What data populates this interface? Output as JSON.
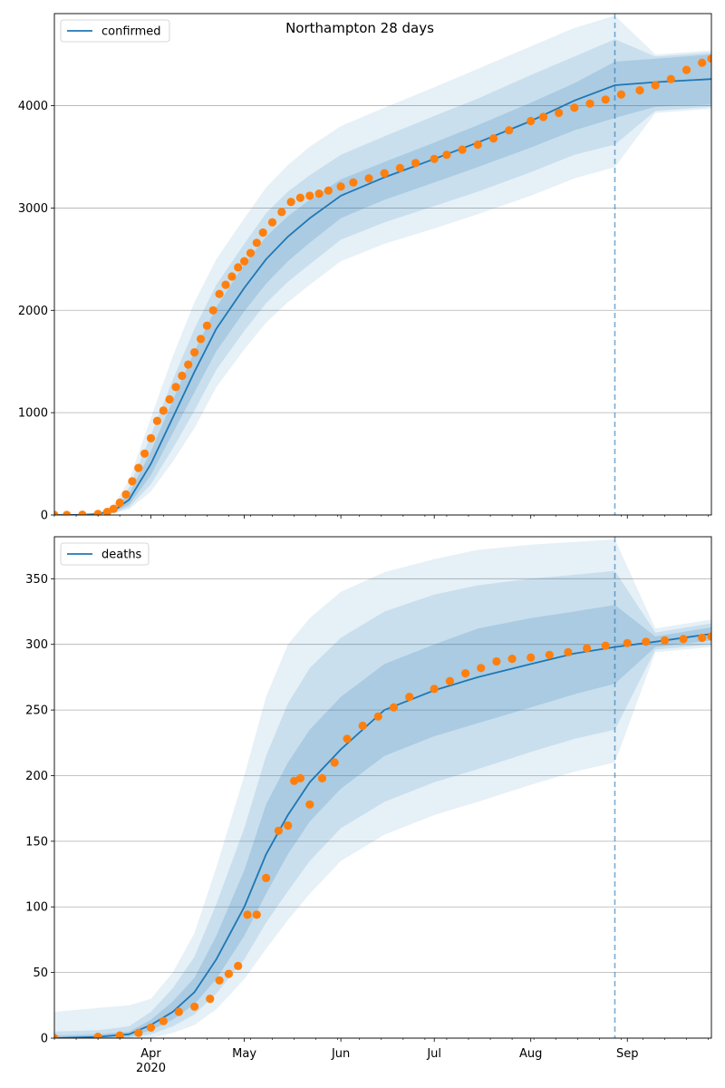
{
  "chart_data": [
    {
      "type": "line",
      "title": "Northampton 28 days",
      "legend": {
        "entries": [
          "confirmed"
        ],
        "placement": "top-left"
      },
      "grid": "horizontal",
      "ylim": [
        0,
        4900
      ],
      "xlim": [
        "2020-03-01",
        "2020-09-28"
      ],
      "yticks": [
        0,
        1000,
        2000,
        3000,
        4000
      ],
      "projection_start": "2020-08-28",
      "model": {
        "x": [
          "2020-03-01",
          "2020-03-10",
          "2020-03-15",
          "2020-03-20",
          "2020-03-25",
          "2020-04-01",
          "2020-04-08",
          "2020-04-15",
          "2020-04-22",
          "2020-05-01",
          "2020-05-08",
          "2020-05-15",
          "2020-05-22",
          "2020-06-01",
          "2020-06-15",
          "2020-07-01",
          "2020-07-15",
          "2020-08-01",
          "2020-08-15",
          "2020-08-28",
          "2020-09-10",
          "2020-09-28"
        ],
        "median": [
          0,
          2,
          10,
          40,
          150,
          500,
          950,
          1400,
          1820,
          2220,
          2500,
          2720,
          2900,
          3120,
          3300,
          3480,
          3640,
          3850,
          4050,
          4200,
          4230,
          4260
        ],
        "band_inner": [
          [
            0,
            0
          ],
          [
            1,
            3
          ],
          [
            7,
            13
          ],
          [
            28,
            55
          ],
          [
            100,
            210
          ],
          [
            390,
            620
          ],
          [
            800,
            1120
          ],
          [
            1200,
            1600
          ],
          [
            1600,
            2030
          ],
          [
            1990,
            2450
          ],
          [
            2260,
            2720
          ],
          [
            2480,
            2920
          ],
          [
            2660,
            3080
          ],
          [
            2900,
            3280
          ],
          [
            3080,
            3450
          ],
          [
            3250,
            3640
          ],
          [
            3400,
            3810
          ],
          [
            3590,
            4030
          ],
          [
            3760,
            4220
          ],
          [
            3880,
            4430
          ],
          [
            3990,
            4460
          ],
          [
            4010,
            4500
          ]
        ],
        "band_middle": [
          [
            0,
            0
          ],
          [
            1,
            4
          ],
          [
            5,
            17
          ],
          [
            20,
            75
          ],
          [
            75,
            270
          ],
          [
            300,
            780
          ],
          [
            650,
            1320
          ],
          [
            1020,
            1820
          ],
          [
            1420,
            2250
          ],
          [
            1800,
            2650
          ],
          [
            2070,
            2950
          ],
          [
            2280,
            3160
          ],
          [
            2450,
            3320
          ],
          [
            2690,
            3520
          ],
          [
            2860,
            3700
          ],
          [
            3020,
            3900
          ],
          [
            3160,
            4070
          ],
          [
            3350,
            4300
          ],
          [
            3520,
            4480
          ],
          [
            3620,
            4650
          ],
          [
            3950,
            4480
          ],
          [
            3990,
            4520
          ]
        ],
        "band_outer": [
          [
            0,
            0
          ],
          [
            0,
            5
          ],
          [
            3,
            22
          ],
          [
            14,
            95
          ],
          [
            55,
            340
          ],
          [
            230,
            950
          ],
          [
            520,
            1550
          ],
          [
            850,
            2080
          ],
          [
            1250,
            2500
          ],
          [
            1620,
            2900
          ],
          [
            1880,
            3200
          ],
          [
            2080,
            3420
          ],
          [
            2250,
            3600
          ],
          [
            2480,
            3800
          ],
          [
            2650,
            3980
          ],
          [
            2800,
            4180
          ],
          [
            2940,
            4360
          ],
          [
            3120,
            4580
          ],
          [
            3290,
            4760
          ],
          [
            3400,
            4880
          ],
          [
            3930,
            4500
          ],
          [
            3970,
            4540
          ]
        ]
      },
      "observed": {
        "x": [
          "2020-03-01",
          "2020-03-05",
          "2020-03-10",
          "2020-03-15",
          "2020-03-18",
          "2020-03-20",
          "2020-03-22",
          "2020-03-24",
          "2020-03-26",
          "2020-03-28",
          "2020-03-30",
          "2020-04-01",
          "2020-04-03",
          "2020-04-05",
          "2020-04-07",
          "2020-04-09",
          "2020-04-11",
          "2020-04-13",
          "2020-04-15",
          "2020-04-17",
          "2020-04-19",
          "2020-04-21",
          "2020-04-23",
          "2020-04-25",
          "2020-04-27",
          "2020-04-29",
          "2020-05-01",
          "2020-05-03",
          "2020-05-05",
          "2020-05-07",
          "2020-05-10",
          "2020-05-13",
          "2020-05-16",
          "2020-05-19",
          "2020-05-22",
          "2020-05-25",
          "2020-05-28",
          "2020-06-01",
          "2020-06-05",
          "2020-06-10",
          "2020-06-15",
          "2020-06-20",
          "2020-06-25",
          "2020-07-01",
          "2020-07-05",
          "2020-07-10",
          "2020-07-15",
          "2020-07-20",
          "2020-07-25",
          "2020-08-01",
          "2020-08-05",
          "2020-08-10",
          "2020-08-15",
          "2020-08-20",
          "2020-08-25",
          "2020-08-30",
          "2020-09-05",
          "2020-09-10",
          "2020-09-15",
          "2020-09-20",
          "2020-09-25",
          "2020-09-28"
        ],
        "values": [
          0,
          0,
          3,
          10,
          30,
          60,
          120,
          200,
          330,
          460,
          600,
          750,
          920,
          1020,
          1130,
          1250,
          1360,
          1470,
          1590,
          1720,
          1850,
          2000,
          2160,
          2250,
          2330,
          2420,
          2480,
          2560,
          2660,
          2760,
          2860,
          2960,
          3060,
          3100,
          3120,
          3140,
          3170,
          3210,
          3250,
          3290,
          3340,
          3390,
          3440,
          3480,
          3520,
          3570,
          3620,
          3680,
          3760,
          3850,
          3890,
          3930,
          3980,
          4020,
          4060,
          4110,
          4150,
          4200,
          4260,
          4350,
          4420,
          4460
        ]
      }
    },
    {
      "type": "line",
      "title": "",
      "legend": {
        "entries": [
          "deaths"
        ],
        "placement": "top-left"
      },
      "grid": "horizontal",
      "ylim": [
        0,
        382
      ],
      "xlim": [
        "2020-03-01",
        "2020-09-28"
      ],
      "yticks": [
        0,
        50,
        100,
        150,
        200,
        250,
        300,
        350
      ],
      "xticks": [
        "2020-04-01",
        "2020-05-01",
        "2020-06-01",
        "2020-07-01",
        "2020-08-01",
        "2020-09-01"
      ],
      "xtick_labels": [
        "Apr",
        "May",
        "Jun",
        "Jul",
        "Aug",
        "Sep"
      ],
      "year_label": "2020",
      "projection_start": "2020-08-28",
      "model": {
        "x": [
          "2020-03-01",
          "2020-03-15",
          "2020-03-25",
          "2020-04-01",
          "2020-04-08",
          "2020-04-15",
          "2020-04-22",
          "2020-05-01",
          "2020-05-08",
          "2020-05-15",
          "2020-05-22",
          "2020-06-01",
          "2020-06-15",
          "2020-07-01",
          "2020-07-15",
          "2020-08-01",
          "2020-08-15",
          "2020-08-28",
          "2020-09-10",
          "2020-09-28"
        ],
        "median": [
          0,
          1,
          3,
          10,
          20,
          35,
          60,
          100,
          140,
          170,
          195,
          220,
          250,
          265,
          275,
          285,
          293,
          298,
          302,
          308
        ],
        "band_inner": [
          [
            0,
            2
          ],
          [
            0,
            3
          ],
          [
            1,
            5
          ],
          [
            6,
            14
          ],
          [
            14,
            28
          ],
          [
            26,
            46
          ],
          [
            45,
            78
          ],
          [
            78,
            128
          ],
          [
            110,
            178
          ],
          [
            140,
            210
          ],
          [
            165,
            235
          ],
          [
            190,
            260
          ],
          [
            215,
            285
          ],
          [
            230,
            300
          ],
          [
            240,
            312
          ],
          [
            252,
            320
          ],
          [
            262,
            325
          ],
          [
            270,
            330
          ],
          [
            298,
            306
          ],
          [
            303,
            313
          ]
        ],
        "band_middle": [
          [
            0,
            5
          ],
          [
            0,
            6
          ],
          [
            0,
            9
          ],
          [
            3,
            20
          ],
          [
            9,
            38
          ],
          [
            18,
            62
          ],
          [
            34,
            102
          ],
          [
            60,
            160
          ],
          [
            88,
            215
          ],
          [
            112,
            255
          ],
          [
            135,
            282
          ],
          [
            160,
            305
          ],
          [
            180,
            325
          ],
          [
            195,
            338
          ],
          [
            205,
            345
          ],
          [
            218,
            350
          ],
          [
            228,
            353
          ],
          [
            235,
            356
          ],
          [
            296,
            309
          ],
          [
            300,
            316
          ]
        ],
        "band_outer": [
          [
            0,
            20
          ],
          [
            0,
            23
          ],
          [
            0,
            25
          ],
          [
            0,
            30
          ],
          [
            4,
            50
          ],
          [
            10,
            80
          ],
          [
            22,
            130
          ],
          [
            45,
            200
          ],
          [
            68,
            260
          ],
          [
            90,
            300
          ],
          [
            110,
            320
          ],
          [
            135,
            340
          ],
          [
            155,
            355
          ],
          [
            170,
            365
          ],
          [
            180,
            372
          ],
          [
            193,
            376
          ],
          [
            203,
            378
          ],
          [
            210,
            380
          ],
          [
            294,
            312
          ],
          [
            298,
            319
          ]
        ]
      },
      "observed": {
        "x": [
          "2020-03-01",
          "2020-03-15",
          "2020-03-22",
          "2020-03-28",
          "2020-04-01",
          "2020-04-05",
          "2020-04-10",
          "2020-04-15",
          "2020-04-20",
          "2020-04-23",
          "2020-04-26",
          "2020-04-29",
          "2020-05-02",
          "2020-05-05",
          "2020-05-08",
          "2020-05-12",
          "2020-05-15",
          "2020-05-17",
          "2020-05-19",
          "2020-05-22",
          "2020-05-26",
          "2020-05-30",
          "2020-06-03",
          "2020-06-08",
          "2020-06-13",
          "2020-06-18",
          "2020-06-23",
          "2020-07-01",
          "2020-07-06",
          "2020-07-11",
          "2020-07-16",
          "2020-07-21",
          "2020-07-26",
          "2020-08-01",
          "2020-08-07",
          "2020-08-13",
          "2020-08-19",
          "2020-08-25",
          "2020-09-01",
          "2020-09-07",
          "2020-09-13",
          "2020-09-19",
          "2020-09-25",
          "2020-09-28"
        ],
        "values": [
          0,
          1,
          2,
          4,
          8,
          13,
          20,
          24,
          30,
          44,
          49,
          55,
          94,
          94,
          122,
          158,
          162,
          196,
          198,
          178,
          198,
          210,
          228,
          238,
          245,
          252,
          260,
          266,
          272,
          278,
          282,
          287,
          289,
          290,
          292,
          294,
          297,
          299,
          301,
          302,
          303,
          304,
          305,
          306
        ]
      }
    }
  ]
}
